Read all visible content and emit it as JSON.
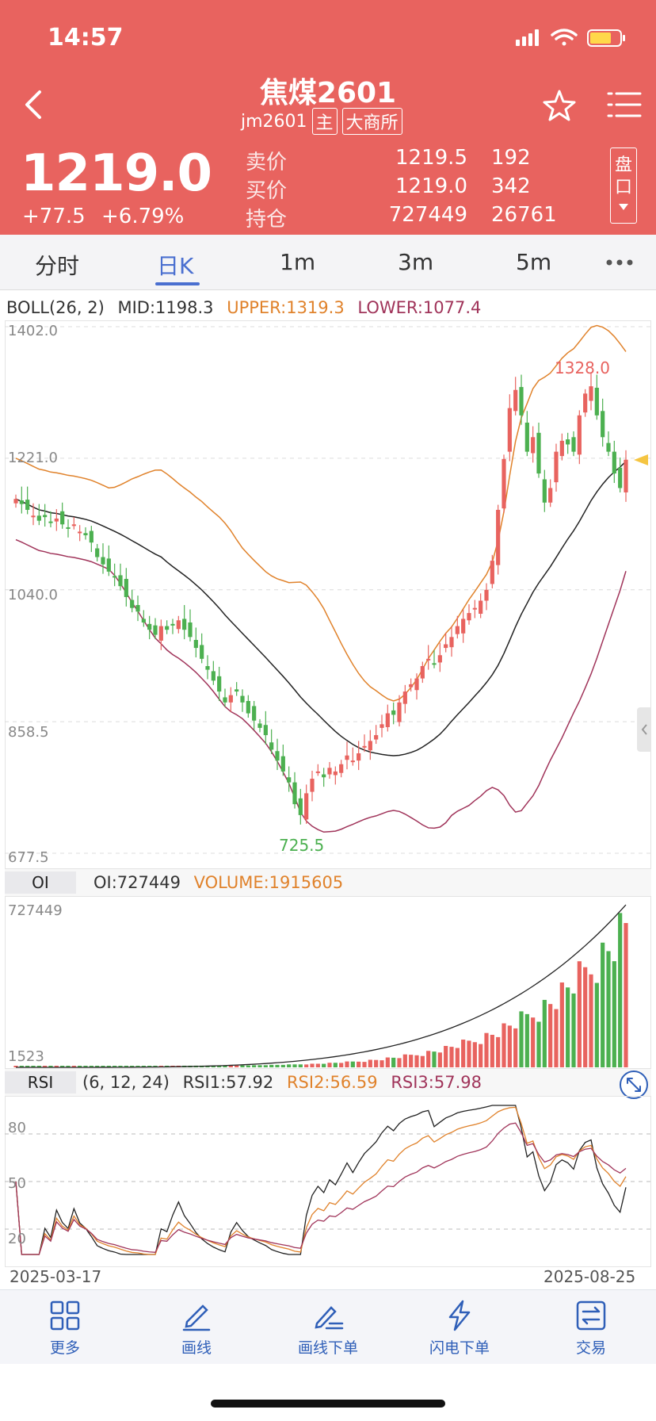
{
  "status_bar": {
    "time": "14:57"
  },
  "header": {
    "title": "焦煤2601",
    "code": "jm2601",
    "badge_main": "主",
    "badge_exchange": "大商所",
    "last_price": "1219.0",
    "change": "+77.5",
    "change_pct": "+6.79%",
    "quotes": [
      {
        "label": "卖价",
        "value": "1219.5",
        "volume": "192"
      },
      {
        "label": "买价",
        "value": "1219.0",
        "volume": "342"
      },
      {
        "label": "持仓",
        "value": "727449",
        "volume": "26761"
      }
    ],
    "panel_toggle": "盘口"
  },
  "tabs": [
    {
      "label": "分时",
      "active": false
    },
    {
      "label": "日K",
      "active": true
    },
    {
      "label": "1m",
      "active": false
    },
    {
      "label": "3m",
      "active": false
    },
    {
      "label": "5m",
      "active": false
    }
  ],
  "boll": {
    "name": "BOLL(26, 2)",
    "mid": "MID:1198.3",
    "upper": "UPPER:1319.3",
    "lower": "LOWER:1077.4",
    "y_ticks": [
      "1402.0",
      "1221.0",
      "1040.0",
      "858.5",
      "677.5"
    ],
    "high_label": "1328.0",
    "low_label": "725.5"
  },
  "oi": {
    "name": "OI",
    "oi_text": "OI:727449",
    "volume_text": "VOLUME:1915605",
    "y_top": "727449",
    "y_bottom": "1523"
  },
  "rsi": {
    "name": "RSI",
    "params": "(6, 12, 24)",
    "rsi1": "RSI1:57.92",
    "rsi2": "RSI2:56.59",
    "rsi3": "RSI3:57.98",
    "levels": [
      "80",
      "50",
      "20"
    ]
  },
  "dates": {
    "start": "2025-03-17",
    "end": "2025-08-25"
  },
  "bottom_nav": [
    {
      "label": "更多",
      "icon": "grid-icon"
    },
    {
      "label": "画线",
      "icon": "draw-line-icon"
    },
    {
      "label": "画线下单",
      "icon": "draw-order-icon"
    },
    {
      "label": "闪电下单",
      "icon": "lightning-icon"
    },
    {
      "label": "交易",
      "icon": "trade-icon"
    }
  ],
  "colors": {
    "header": "#e8635f",
    "up": "#e8635f",
    "down": "#4cb050",
    "upper": "#e0822b",
    "lower": "#a0345a",
    "mid": "#222222",
    "accent": "#4a6fd0"
  },
  "chart_data": {
    "type": "candlestick",
    "x_start": "2025-03-17",
    "x_end": "2025-08-25",
    "ylim": [
      677.5,
      1402.0
    ],
    "y_ticks": [
      1402.0,
      1221.0,
      1040.0,
      858.5,
      677.5
    ],
    "close": [
      1165,
      1158,
      1150,
      1142,
      1135,
      1140,
      1132,
      1138,
      1130,
      1125,
      1130,
      1120,
      1115,
      1105,
      1085,
      1075,
      1065,
      1058,
      1045,
      1030,
      1015,
      1010,
      995,
      985,
      978,
      990,
      985,
      992,
      998,
      985,
      975,
      960,
      945,
      930,
      915,
      900,
      885,
      895,
      900,
      885,
      870,
      860,
      850,
      840,
      820,
      805,
      790,
      775,
      745,
      730,
      760,
      780,
      790,
      782,
      795,
      790,
      800,
      812,
      805,
      815,
      825,
      832,
      840,
      855,
      870,
      868,
      885,
      900,
      910,
      918,
      935,
      945,
      938,
      950,
      965,
      975,
      990,
      1000,
      1008,
      1015,
      1025,
      1040,
      1080,
      1150,
      1220,
      1290,
      1315,
      1280,
      1230,
      1250,
      1200,
      1160,
      1180,
      1230,
      1245,
      1240,
      1230,
      1280,
      1310,
      1320,
      1280,
      1250,
      1230,
      1200,
      1180,
      1219
    ],
    "mid": [
      1198.3
    ],
    "upper": [
      1319.3
    ],
    "lower": [
      1077.4
    ],
    "high": 1328.0,
    "low": 725.5
  }
}
